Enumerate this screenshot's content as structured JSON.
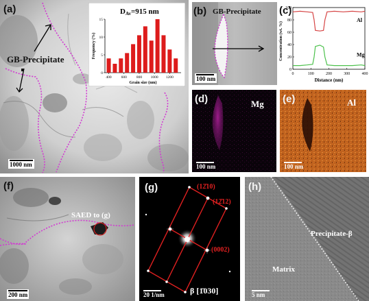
{
  "panels": {
    "a": {
      "label": "(a)",
      "annotation": "GB-Precipitate",
      "scale": "1000 nm"
    },
    "b": {
      "label": "(b)",
      "annotation": "GB-Precipitate",
      "scale": "100 nm"
    },
    "c": {
      "label": "(c)"
    },
    "d": {
      "label": "(d)",
      "element": "Mg",
      "scale": "100 nm"
    },
    "e": {
      "label": "(e)",
      "element": "Al",
      "scale": "100 nm"
    },
    "f": {
      "label": "(f)",
      "annotation": "SAED to (g)",
      "scale": "200 nm"
    },
    "g": {
      "label": "(g)",
      "scale": "20 1/nm",
      "zone_axis": "β [1̄030]",
      "spots": [
        "(12̄10)",
        "(12̄12)",
        "(0002)"
      ]
    },
    "h": {
      "label": "(h)",
      "phase_label": "Precipitate-β",
      "matrix_label": "Matrix",
      "scale": "5 nm"
    }
  },
  "chart_data": [
    {
      "type": "bar",
      "title": "D_Av=915 nm",
      "title_main": "D",
      "title_sub": "Av",
      "title_rest": "=915 nm",
      "xlabel": "Grain size (nm)",
      "ylabel": "Frequency (%)",
      "xlim": [
        350,
        1350
      ],
      "ylim": [
        0,
        15
      ],
      "xticks": [
        400,
        600,
        800,
        1000,
        1200
      ],
      "yticks": [
        0,
        5,
        10,
        15
      ],
      "x": [
        400,
        480,
        560,
        640,
        720,
        800,
        880,
        960,
        1040,
        1120,
        1200,
        1280
      ],
      "values": [
        4,
        2.5,
        4,
        5.5,
        8,
        10.5,
        13,
        9,
        15,
        10.5,
        6.5,
        4
      ],
      "color": "#dd1c1c"
    },
    {
      "type": "line",
      "xlabel": "Distance (nm)",
      "ylabel": "Concentration (wt. %)",
      "xlim": [
        0,
        400
      ],
      "ylim": [
        0,
        100
      ],
      "xticks": [
        0,
        100,
        200,
        300,
        400
      ],
      "yticks": [
        0,
        20,
        40,
        60,
        80,
        100
      ],
      "series": [
        {
          "name": "Al",
          "color": "#d64545",
          "x": [
            0,
            40,
            80,
            110,
            118,
            125,
            150,
            170,
            178,
            190,
            230,
            280,
            330,
            380,
            400
          ],
          "y": [
            93,
            94,
            93,
            92,
            80,
            63,
            62,
            63,
            80,
            93,
            94,
            93,
            94,
            93,
            94
          ]
        },
        {
          "name": "Mg",
          "color": "#4cc14c",
          "x": [
            0,
            40,
            80,
            110,
            118,
            125,
            150,
            170,
            178,
            190,
            230,
            280,
            330,
            380,
            400
          ],
          "y": [
            6,
            6,
            7,
            8,
            20,
            37,
            39,
            36,
            20,
            7,
            6,
            6,
            6,
            7,
            6
          ]
        }
      ]
    }
  ]
}
